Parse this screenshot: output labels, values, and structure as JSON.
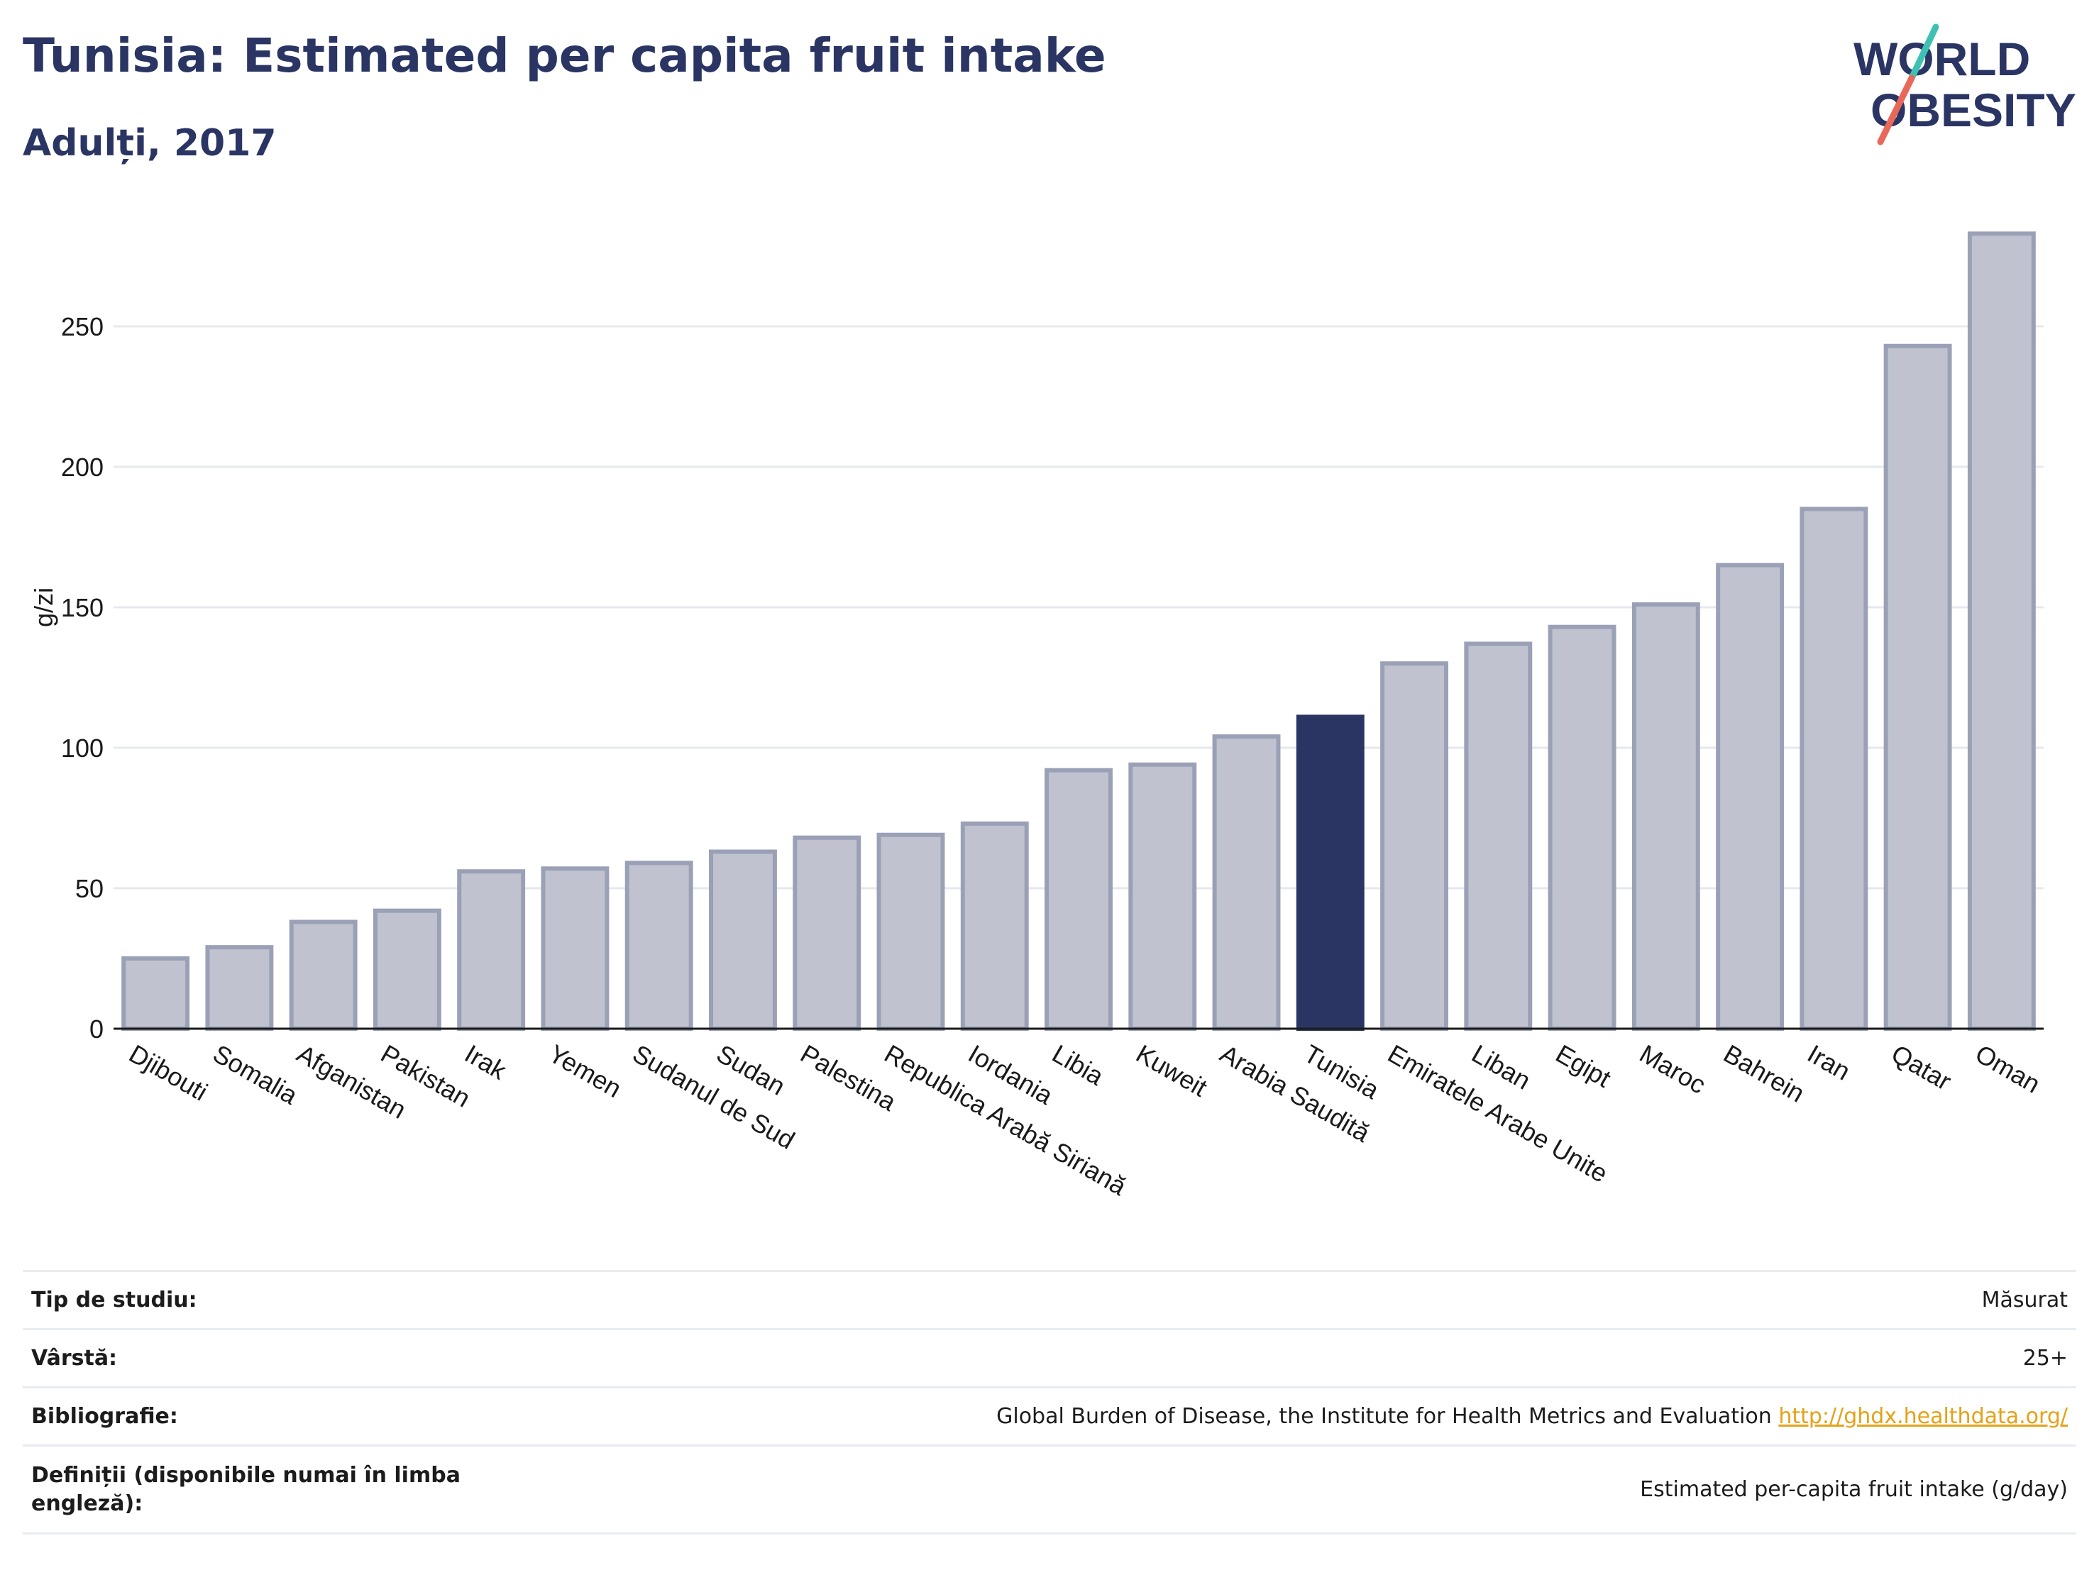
{
  "header": {
    "title": "Tunisia: Estimated per capita fruit intake",
    "subtitle": "Adulți, 2017"
  },
  "logo": {
    "line1": "WORLD",
    "line2": "OBESITY"
  },
  "chart_data": {
    "type": "bar",
    "title": "Tunisia: Estimated per capita fruit intake",
    "subtitle": "Adulți, 2017",
    "xlabel": "",
    "ylabel": "g/zi",
    "ylim": [
      0,
      290
    ],
    "yticks": [
      0,
      50,
      100,
      150,
      200,
      250
    ],
    "grid": true,
    "highlight": "Tunisia",
    "colors": {
      "bar": "#c0c3cf",
      "bar_edge": "#9aa0b6",
      "highlight": "#2a3563"
    },
    "categories": [
      "Djibouti",
      "Somalia",
      "Afganistan",
      "Pakistan",
      "Irak",
      "Yemen",
      "Sudanul de Sud",
      "Sudan",
      "Palestina",
      "Republica Arabă Siriană",
      "Iordania",
      "Libia",
      "Kuweit",
      "Arabia Saudită",
      "Tunisia",
      "Emiratele Arabe Unite",
      "Liban",
      "Egipt",
      "Maroc",
      "Bahrein",
      "Iran",
      "Qatar",
      "Oman"
    ],
    "values": [
      25,
      29,
      38,
      42,
      56,
      57,
      59,
      63,
      68,
      69,
      73,
      92,
      94,
      104,
      111,
      130,
      137,
      143,
      151,
      165,
      185,
      243,
      283
    ]
  },
  "info": {
    "rows": [
      {
        "key": "Tip de studiu:",
        "value": "Măsurat"
      },
      {
        "key": "Vârstă:",
        "value": "25+"
      },
      {
        "key": "Bibliografie:",
        "value": "Global Burden of Disease, the Institute for Health Metrics and Evaluation",
        "link": "http://ghdx.healthdata.org/"
      },
      {
        "key": "Definiții (disponibile numai în limba engleză):",
        "value": "Estimated per-capita fruit intake (g/day)"
      }
    ]
  }
}
